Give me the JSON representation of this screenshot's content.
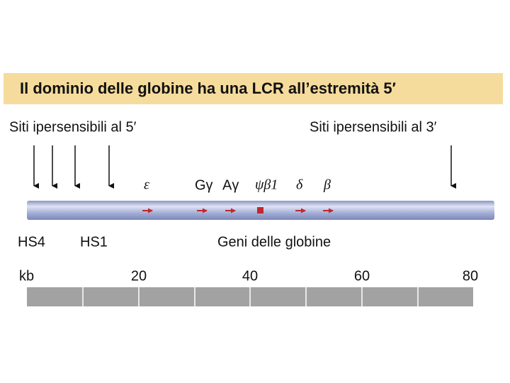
{
  "header": {
    "title": "Il dominio delle globine ha una LCR all’estremità 5′"
  },
  "sites": {
    "left": "Siti ipersensibili al 5′",
    "right": "Siti ipersensibili al 3′"
  },
  "genes": [
    "ε",
    "Gγ",
    "Aγ",
    "ψβ1",
    "δ",
    "β"
  ],
  "hs_labels": [
    "HS4",
    "HS1"
  ],
  "genes_caption": "Geni delle globine",
  "scale": {
    "unit": "kb",
    "ticks": [
      20,
      40,
      60,
      80
    ]
  }
}
